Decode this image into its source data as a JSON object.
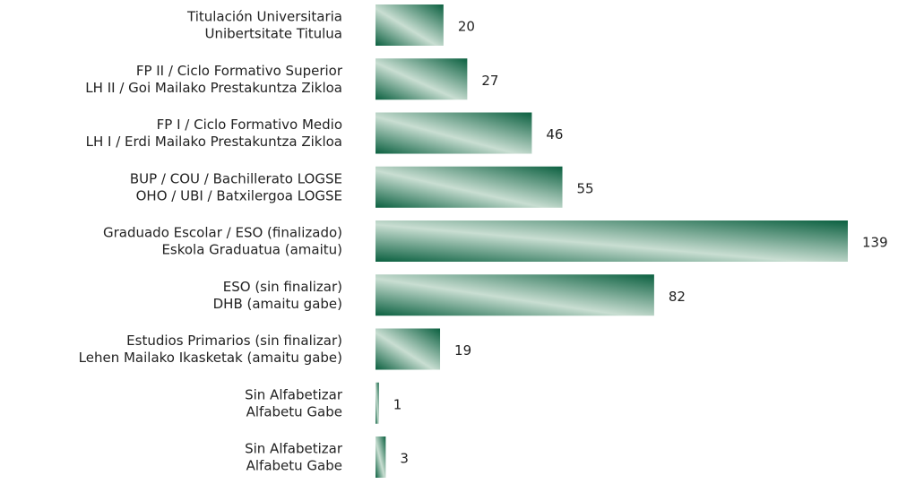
{
  "chart_data": {
    "type": "barh",
    "categories": [
      [
        "Titulación Universitaria",
        "Unibertsitate Titulua"
      ],
      [
        "FP II / Ciclo Formativo Superior",
        "LH II / Goi Mailako Prestakuntza Zikloa"
      ],
      [
        "FP I / Ciclo Formativo Medio",
        "LH I / Erdi Mailako Prestakuntza Zikloa"
      ],
      [
        "BUP / COU / Bachillerato LOGSE",
        "OHO / UBI / Batxilergoa LOGSE"
      ],
      [
        "Graduado Escolar / ESO (finalizado)",
        "Eskola Graduatua (amaitu)"
      ],
      [
        "ESO (sin finalizar)",
        "DHB (amaitu gabe)"
      ],
      [
        "Estudios Primarios (sin finalizar)",
        "Lehen Mailako Ikasketak (amaitu gabe)"
      ],
      [
        "Sin Alfabetizar",
        "Alfabetu Gabe"
      ],
      [
        "Sin Alfabetizar",
        "Alfabetu Gabe"
      ]
    ],
    "values": [
      20,
      27,
      46,
      55,
      139,
      82,
      19,
      1,
      3
    ],
    "color": "#0b6040"
  }
}
